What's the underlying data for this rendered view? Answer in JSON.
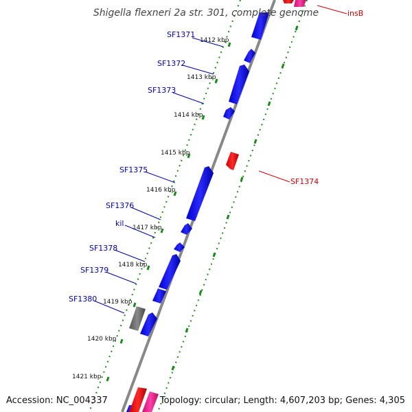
{
  "title": "Shigella flexneri 2a str. 301, complete genome",
  "accession": "Accession: NC_004337",
  "summary": "Topology: circular; Length: 4,607,203 bp; Genes: 4,305",
  "colors": {
    "backbone": "#888888",
    "ticks": "#1a8a1a",
    "forward_gene": "#0000ee",
    "reverse_gene": "#ee0000",
    "mobile_element": "#ee1f8f",
    "pseudo_gene": "#666666",
    "forward_label": "#0000aa",
    "reverse_label": "#cc0000"
  },
  "ticks": [
    "1412 kbp",
    "1413 kbp",
    "1414 kbp",
    "1415 kbp",
    "1416 kbp",
    "1417 kbp",
    "1418 kbp",
    "1419 kbp",
    "1420 kbp",
    "1421 kbp"
  ],
  "gene_labels": [
    {
      "name": "SF1371",
      "strand": "forward"
    },
    {
      "name": "SF1372",
      "strand": "forward"
    },
    {
      "name": "SF1373",
      "strand": "forward"
    },
    {
      "name": "SF1375",
      "strand": "forward"
    },
    {
      "name": "SF1376",
      "strand": "forward"
    },
    {
      "name": "kil",
      "strand": "forward"
    },
    {
      "name": "SF1378",
      "strand": "forward"
    },
    {
      "name": "SF1379",
      "strand": "forward"
    },
    {
      "name": "SF1380",
      "strand": "forward"
    },
    {
      "name": "SF1374",
      "strand": "reverse"
    },
    {
      "name": "insB",
      "strand": "reverse"
    }
  ]
}
